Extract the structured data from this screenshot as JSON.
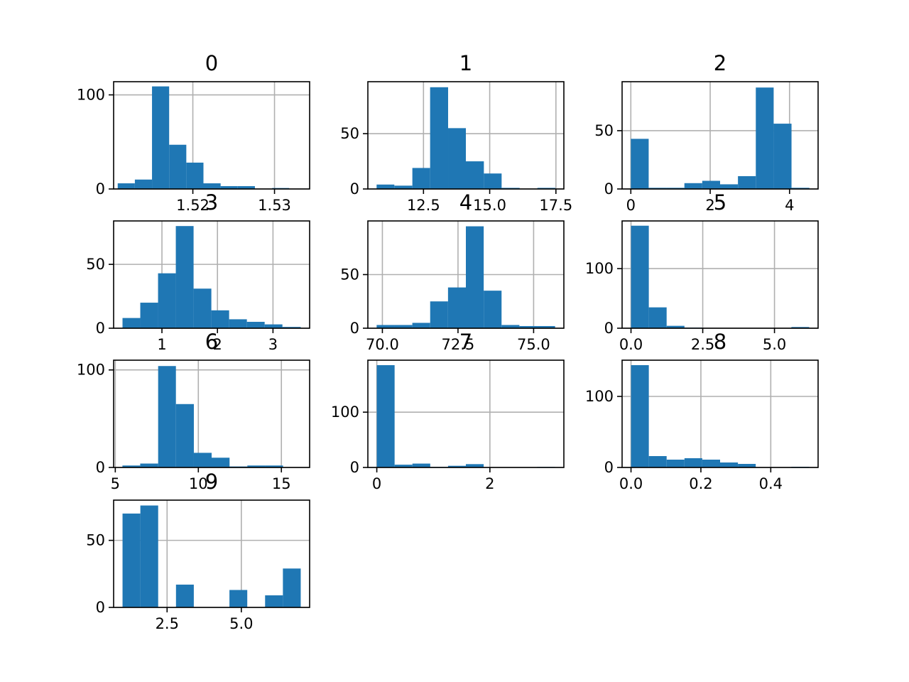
{
  "chart_data": [
    {
      "type": "bar",
      "title": "0",
      "bins": [
        [
          1.5108,
          1.5129
        ],
        [
          1.5129,
          1.515
        ],
        [
          1.515,
          1.5171
        ],
        [
          1.5171,
          1.5192
        ],
        [
          1.5192,
          1.5213
        ],
        [
          1.5213,
          1.5234
        ],
        [
          1.5234,
          1.5255
        ],
        [
          1.5255,
          1.5276
        ],
        [
          1.5276,
          1.5297
        ],
        [
          1.5297,
          1.5318
        ]
      ],
      "values": [
        6,
        10,
        109,
        47,
        28,
        6,
        3,
        3,
        0,
        1
      ],
      "xlim": [
        1.5103,
        1.5343
      ],
      "ylim": [
        0,
        114
      ],
      "xticks": [
        1.52,
        1.53
      ],
      "xtick_labels": [
        "1.52",
        "1.53"
      ],
      "yticks": [
        0,
        100
      ],
      "ytick_labels": [
        "0",
        "100"
      ]
    },
    {
      "type": "bar",
      "title": "1",
      "bins": [
        [
          10.73,
          11.4
        ],
        [
          11.4,
          12.08
        ],
        [
          12.08,
          12.75
        ],
        [
          12.75,
          13.43
        ],
        [
          13.43,
          14.1
        ],
        [
          14.1,
          14.78
        ],
        [
          14.78,
          15.45
        ],
        [
          15.45,
          16.13
        ],
        [
          16.13,
          16.8
        ],
        [
          16.8,
          17.48
        ]
      ],
      "values": [
        4,
        3,
        19,
        92,
        55,
        25,
        14,
        1,
        0,
        1
      ],
      "xlim": [
        10.4,
        17.8
      ],
      "ylim": [
        0,
        97
      ],
      "xticks": [
        12.5,
        15.0,
        17.5
      ],
      "xtick_labels": [
        "12.5",
        "15.0",
        "17.5"
      ],
      "yticks": [
        0,
        50
      ],
      "ytick_labels": [
        "0",
        "50"
      ]
    },
    {
      "type": "bar",
      "title": "2",
      "bins": [
        [
          0.0,
          0.45
        ],
        [
          0.45,
          0.9
        ],
        [
          0.9,
          1.35
        ],
        [
          1.35,
          1.8
        ],
        [
          1.8,
          2.25
        ],
        [
          2.25,
          2.7
        ],
        [
          2.7,
          3.15
        ],
        [
          3.15,
          3.6
        ],
        [
          3.6,
          4.05
        ],
        [
          4.05,
          4.5
        ]
      ],
      "values": [
        43,
        1,
        1,
        5,
        7,
        4,
        11,
        87,
        56,
        1
      ],
      "xlim": [
        -0.22,
        4.72
      ],
      "ylim": [
        0,
        92
      ],
      "xticks": [
        0,
        2,
        4
      ],
      "xtick_labels": [
        "0",
        "2",
        "4"
      ],
      "yticks": [
        0,
        50
      ],
      "ytick_labels": [
        "0",
        "50"
      ]
    },
    {
      "type": "bar",
      "title": "3",
      "bins": [
        [
          0.29,
          0.61
        ],
        [
          0.61,
          0.93
        ],
        [
          0.93,
          1.25
        ],
        [
          1.25,
          1.57
        ],
        [
          1.57,
          1.89
        ],
        [
          1.89,
          2.21
        ],
        [
          2.21,
          2.53
        ],
        [
          2.53,
          2.85
        ],
        [
          2.85,
          3.17
        ],
        [
          3.17,
          3.5
        ]
      ],
      "values": [
        8,
        20,
        43,
        80,
        31,
        14,
        7,
        5,
        3,
        1
      ],
      "xlim": [
        0.13,
        3.66
      ],
      "ylim": [
        0,
        84
      ],
      "xticks": [
        1,
        2,
        3
      ],
      "xtick_labels": [
        "1",
        "2",
        "3"
      ],
      "yticks": [
        0,
        50
      ],
      "ytick_labels": [
        "0",
        "50"
      ]
    },
    {
      "type": "bar",
      "title": "4",
      "bins": [
        [
          69.81,
          70.4
        ],
        [
          70.4,
          70.99
        ],
        [
          70.99,
          71.58
        ],
        [
          71.58,
          72.17
        ],
        [
          72.17,
          72.76
        ],
        [
          72.76,
          73.35
        ],
        [
          73.35,
          73.94
        ],
        [
          73.94,
          74.53
        ],
        [
          74.53,
          75.12
        ],
        [
          75.12,
          75.71
        ]
      ],
      "values": [
        3,
        3,
        5,
        25,
        38,
        95,
        35,
        3,
        2,
        2
      ],
      "xlim": [
        69.52,
        76.0
      ],
      "ylim": [
        0,
        100
      ],
      "xticks": [
        70.0,
        72.5,
        75.0
      ],
      "xtick_labels": [
        "70.0",
        "72.5",
        "75.0"
      ],
      "yticks": [
        0,
        50
      ],
      "ytick_labels": [
        "0",
        "50"
      ]
    },
    {
      "type": "bar",
      "title": "5",
      "bins": [
        [
          0.0,
          0.621
        ],
        [
          0.621,
          1.242
        ],
        [
          1.242,
          1.863
        ],
        [
          1.863,
          2.484
        ],
        [
          2.484,
          3.105
        ],
        [
          3.105,
          3.726
        ],
        [
          3.726,
          4.347
        ],
        [
          4.347,
          4.968
        ],
        [
          4.968,
          5.589
        ],
        [
          5.589,
          6.21
        ]
      ],
      "values": [
        172,
        35,
        4,
        1,
        0,
        0,
        0,
        0,
        0,
        2
      ],
      "xlim": [
        -0.31,
        6.52
      ],
      "ylim": [
        0,
        180
      ],
      "xticks": [
        0.0,
        2.5,
        5.0
      ],
      "xtick_labels": [
        "0.0",
        "2.5",
        "5.0"
      ],
      "yticks": [
        0,
        100
      ],
      "ytick_labels": [
        "0",
        "100"
      ]
    },
    {
      "type": "bar",
      "title": "6",
      "bins": [
        [
          5.43,
          6.5
        ],
        [
          6.5,
          7.58
        ],
        [
          7.58,
          8.65
        ],
        [
          8.65,
          9.73
        ],
        [
          9.73,
          10.8
        ],
        [
          10.8,
          11.88
        ],
        [
          11.88,
          12.95
        ],
        [
          12.95,
          14.03
        ],
        [
          14.03,
          15.1
        ],
        [
          15.1,
          16.19
        ]
      ],
      "values": [
        2,
        4,
        104,
        65,
        15,
        10,
        1,
        2,
        2,
        0
      ],
      "xlim": [
        4.9,
        16.7
      ],
      "ylim": [
        0,
        110
      ],
      "xticks": [
        5,
        10,
        15
      ],
      "xtick_labels": [
        "5",
        "10",
        "15"
      ],
      "yticks": [
        0,
        100
      ],
      "ytick_labels": [
        "0",
        "100"
      ]
    },
    {
      "type": "bar",
      "title": "7",
      "bins": [
        [
          0.0,
          0.315
        ],
        [
          0.315,
          0.63
        ],
        [
          0.63,
          0.945
        ],
        [
          0.945,
          1.26
        ],
        [
          1.26,
          1.575
        ],
        [
          1.575,
          1.89
        ],
        [
          1.89,
          2.205
        ],
        [
          2.205,
          2.52
        ],
        [
          2.52,
          2.835
        ],
        [
          2.835,
          3.15
        ]
      ],
      "values": [
        185,
        5,
        7,
        1,
        3,
        6,
        0,
        0,
        0,
        1
      ],
      "xlim": [
        -0.158,
        3.308
      ],
      "ylim": [
        0,
        194
      ],
      "xticks": [
        0,
        2
      ],
      "xtick_labels": [
        "0",
        "2"
      ],
      "yticks": [
        0,
        100
      ],
      "ytick_labels": [
        "0",
        "100"
      ]
    },
    {
      "type": "bar",
      "title": "8",
      "bins": [
        [
          0.0,
          0.051
        ],
        [
          0.051,
          0.102
        ],
        [
          0.102,
          0.153
        ],
        [
          0.153,
          0.204
        ],
        [
          0.204,
          0.255
        ],
        [
          0.255,
          0.306
        ],
        [
          0.306,
          0.357
        ],
        [
          0.357,
          0.408
        ],
        [
          0.408,
          0.459
        ],
        [
          0.459,
          0.51
        ]
      ],
      "values": [
        144,
        16,
        11,
        13,
        11,
        7,
        5,
        0,
        0,
        1
      ],
      "xlim": [
        -0.0255,
        0.5355
      ],
      "ylim": [
        0,
        151
      ],
      "xticks": [
        0.0,
        0.2,
        0.4
      ],
      "xtick_labels": [
        "0.0",
        "0.2",
        "0.4"
      ],
      "yticks": [
        0,
        100
      ],
      "ytick_labels": [
        "0",
        "100"
      ]
    },
    {
      "type": "bar",
      "title": "9",
      "bins": [
        [
          1.0,
          1.6
        ],
        [
          1.6,
          2.2
        ],
        [
          2.2,
          2.8
        ],
        [
          2.8,
          3.4
        ],
        [
          3.4,
          4.0
        ],
        [
          4.0,
          4.6
        ],
        [
          4.6,
          5.2
        ],
        [
          5.2,
          5.8
        ],
        [
          5.8,
          6.4
        ],
        [
          6.4,
          7.0
        ]
      ],
      "values": [
        70,
        76,
        0,
        17,
        0,
        0,
        13,
        0,
        9,
        29
      ],
      "xlim": [
        0.7,
        7.3
      ],
      "ylim": [
        0,
        80
      ],
      "xticks": [
        2.5,
        5.0
      ],
      "xtick_labels": [
        "2.5",
        "5.0"
      ],
      "yticks": [
        0,
        50
      ],
      "ytick_labels": [
        "0",
        "50"
      ]
    }
  ],
  "colors": {
    "bar": "#1f77b4",
    "grid": "#b0b0b0",
    "axis": "#000000"
  }
}
